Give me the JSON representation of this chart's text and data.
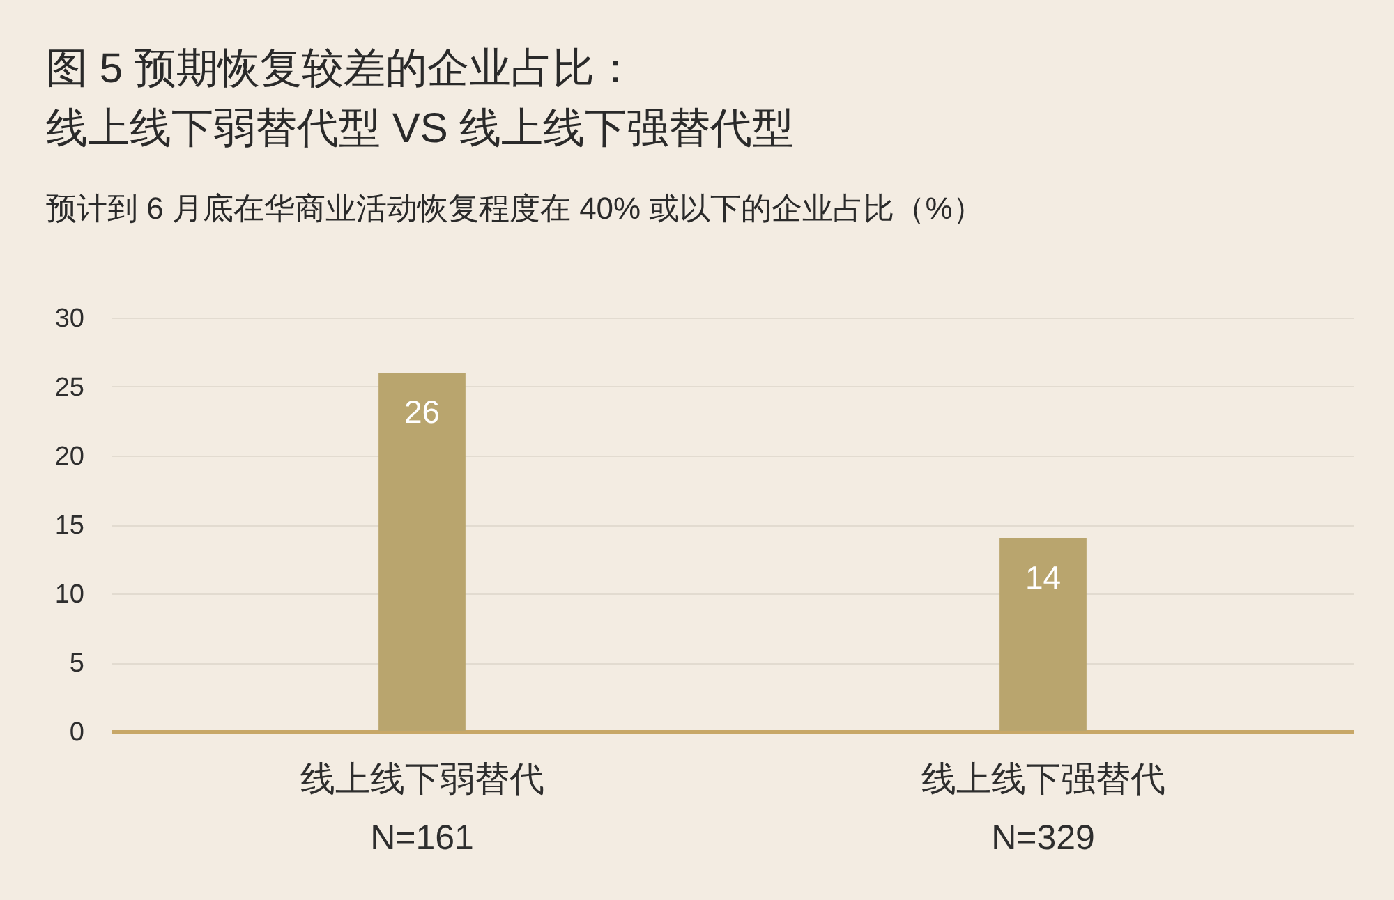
{
  "chart_data": {
    "type": "bar",
    "title": "图 5 预期恢复较差的企业占比：线上线下弱替代型 VS 线上线下强替代型",
    "subtitle": "预计到 6 月底在华商业活动恢复程度在 40% 或以下的企业占比（%）",
    "categories": [
      "线上线下弱替代\nN=161",
      "线上线下强替代\nN=329"
    ],
    "values": [
      26,
      14
    ],
    "color": "#b9a56e",
    "ylim": [
      0,
      30
    ],
    "yticks": [
      0,
      5,
      10,
      15,
      20,
      25,
      30
    ],
    "grid": "y",
    "data_labels": true
  }
}
